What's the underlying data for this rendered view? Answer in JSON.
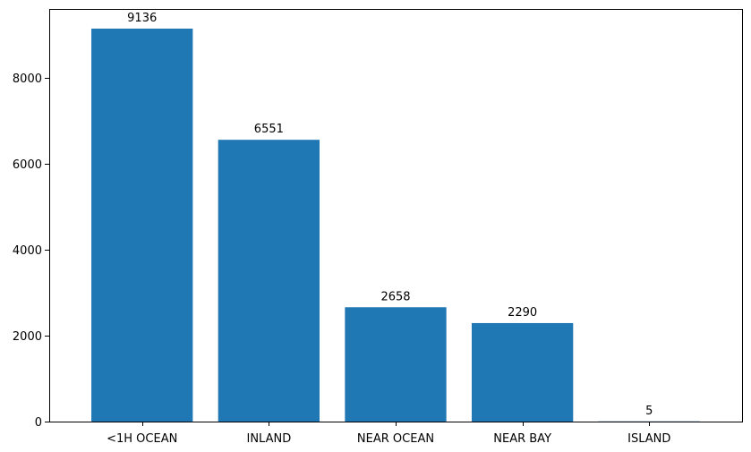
{
  "chart_data": {
    "type": "bar",
    "title": "",
    "xlabel": "",
    "ylabel": "",
    "categories": [
      "<1H OCEAN",
      "INLAND",
      "NEAR OCEAN",
      "NEAR BAY",
      "ISLAND"
    ],
    "values": [
      9136,
      6551,
      2658,
      2290,
      5
    ],
    "bar_labels": [
      "9136",
      "6551",
      "2658",
      "2290",
      "5"
    ],
    "ylim": [
      0,
      9593
    ],
    "yticks": [
      0,
      2000,
      4000,
      6000,
      8000
    ],
    "ytick_labels": [
      "0",
      "2000",
      "4000",
      "6000",
      "8000"
    ],
    "bar_color": "#1f77b4",
    "grid": false,
    "legend": "none"
  }
}
